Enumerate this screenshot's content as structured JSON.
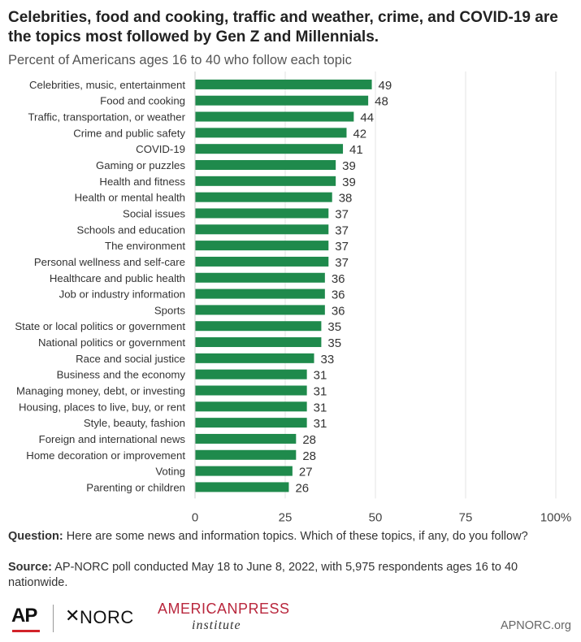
{
  "title": "Celebrities, food and cooking, traffic and weather, crime, and COVID-19 are the topics most followed by Gen Z and Millennials.",
  "subtitle": "Percent of Americans ages 16 to 40 who follow each topic",
  "chart_data": {
    "type": "bar",
    "orientation": "horizontal",
    "categories": [
      "Celebrities, music, entertainment",
      "Food and cooking",
      "Traffic, transportation, or weather",
      "Crime and public safety",
      "COVID-19",
      "Gaming or puzzles",
      "Health and fitness",
      "Health or mental health",
      "Social issues",
      "Schools and education",
      "The environment",
      "Personal wellness and self-care",
      "Healthcare and public health",
      "Job or industry information",
      "Sports",
      "State or local politics or government",
      "National politics or government",
      "Race and social justice",
      "Business and the economy",
      "Managing money, debt, or investing",
      "Housing, places to live, buy, or rent",
      "Style, beauty, fashion",
      "Foreign and international news",
      "Home decoration or improvement",
      "Voting",
      "Parenting or children"
    ],
    "values": [
      49,
      48,
      44,
      42,
      41,
      39,
      39,
      38,
      37,
      37,
      37,
      37,
      36,
      36,
      36,
      35,
      35,
      33,
      31,
      31,
      31,
      31,
      28,
      28,
      27,
      26
    ],
    "xlim": [
      0,
      100
    ],
    "xticks": [
      "0",
      "25",
      "50",
      "75",
      "100%"
    ],
    "xtick_values": [
      0,
      25,
      50,
      75,
      100
    ],
    "grid": "vertical",
    "bar_color": "#1f8a4c",
    "title": "",
    "xlabel": "",
    "ylabel": ""
  },
  "notes": {
    "question_label": "Question:",
    "question_text": " Here are some news and information topics. Which of these topics, if any, do you follow?",
    "source_label": "Source:",
    "source_text": " AP-NORC poll conducted May 18 to June 8, 2022, with 5,975 respondents ages 16 to 40 nationwide."
  },
  "footer": {
    "ap_logo": "AP",
    "norc_mark": "✕",
    "norc_logo": "NORC",
    "api_logo_top": "AMERICANPRESS",
    "api_logo_bottom": "institute",
    "site": "APNORC.org",
    "accent_red": "#d2232a"
  }
}
